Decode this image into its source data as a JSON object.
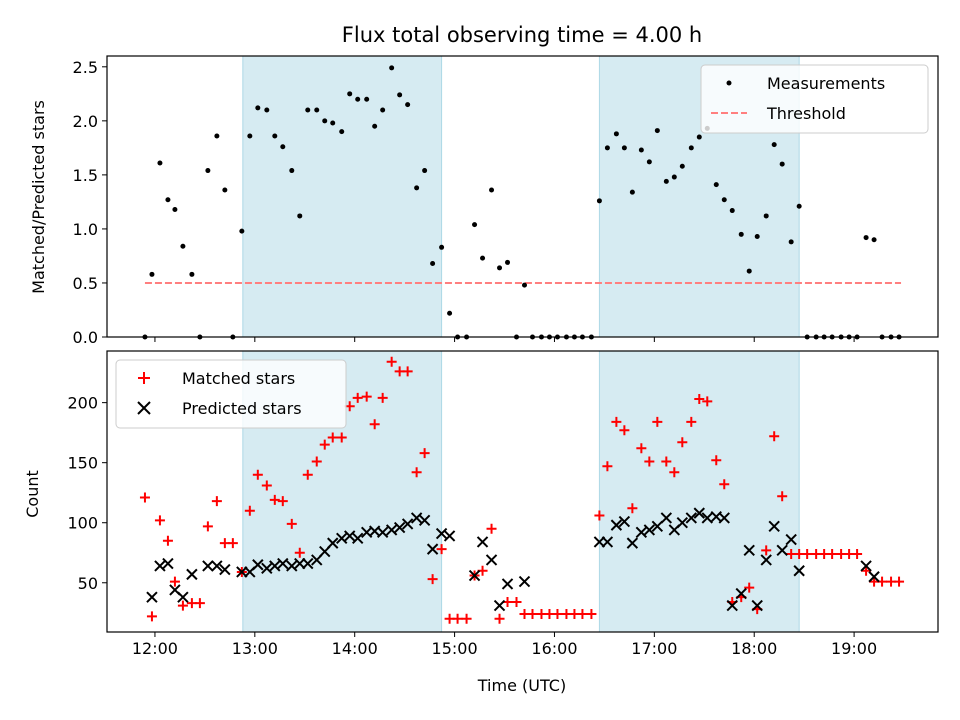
{
  "chart_data": [
    {
      "type": "scatter",
      "title": "Flux total observing time = 4.00 h",
      "xlabel": "",
      "ylabel": "Matched/Predicted stars",
      "xlim": [
        11.52,
        19.84
      ],
      "ylim": [
        0,
        2.6
      ],
      "yticks": [
        0.0,
        0.5,
        1.0,
        1.5,
        2.0,
        2.5
      ],
      "ytick_labels": [
        "0.0",
        "0.5",
        "1.0",
        "1.5",
        "2.0",
        "2.5"
      ],
      "xticks": [
        12,
        13,
        14,
        15,
        16,
        17,
        18,
        19
      ],
      "shaded_intervals": [
        [
          12.88,
          14.87
        ],
        [
          16.45,
          18.45
        ]
      ],
      "shade_color": "#add8e6",
      "legend": {
        "location": "upper right",
        "entries": [
          {
            "label": "Measurements",
            "marker": "dot",
            "color": "#000000"
          },
          {
            "label": "Threshold",
            "marker": "dashed-line",
            "color": "#ff7f7f"
          }
        ]
      },
      "threshold": {
        "name": "Threshold",
        "y": 0.5,
        "x_range": [
          11.9,
          19.47
        ],
        "color": "#ff7f7f"
      },
      "series": [
        {
          "name": "Measurements",
          "color": "#000000",
          "x": [
            11.9,
            11.97,
            12.05,
            12.13,
            12.2,
            12.28,
            12.37,
            12.45,
            12.53,
            12.62,
            12.7,
            12.78,
            12.87,
            12.95,
            13.03,
            13.12,
            13.2,
            13.28,
            13.37,
            13.45,
            13.53,
            13.62,
            13.7,
            13.78,
            13.87,
            13.95,
            14.03,
            14.12,
            14.2,
            14.28,
            14.37,
            14.45,
            14.53,
            14.62,
            14.7,
            14.78,
            14.87,
            14.95,
            15.03,
            15.12,
            15.2,
            15.28,
            15.37,
            15.45,
            15.53,
            15.62,
            15.7,
            15.78,
            15.87,
            15.95,
            16.03,
            16.12,
            16.2,
            16.28,
            16.37,
            16.45,
            16.53,
            16.62,
            16.7,
            16.78,
            16.87,
            16.95,
            17.03,
            17.12,
            17.2,
            17.28,
            17.37,
            17.45,
            17.53,
            17.62,
            17.7,
            17.78,
            17.87,
            17.95,
            18.03,
            18.12,
            18.2,
            18.28,
            18.37,
            18.45,
            18.53,
            18.62,
            18.7,
            18.78,
            18.87,
            18.95,
            19.03,
            19.12,
            19.2,
            19.28,
            19.37,
            19.45
          ],
          "y": [
            0.0,
            0.58,
            1.61,
            1.27,
            1.18,
            0.84,
            0.58,
            0.0,
            1.54,
            1.86,
            1.36,
            0.0,
            0.98,
            1.86,
            2.12,
            2.1,
            1.86,
            1.76,
            1.54,
            1.12,
            2.1,
            2.1,
            2.0,
            1.98,
            1.9,
            2.25,
            2.2,
            2.2,
            1.95,
            2.1,
            2.49,
            2.24,
            2.15,
            1.38,
            1.54,
            0.68,
            0.83,
            0.22,
            0.0,
            0.0,
            1.04,
            0.73,
            1.36,
            0.64,
            0.69,
            0.0,
            0.48,
            0.0,
            0.0,
            0.0,
            0.0,
            0.0,
            0.0,
            0.0,
            0.0,
            1.26,
            1.75,
            1.88,
            1.75,
            1.34,
            1.73,
            1.62,
            1.91,
            1.44,
            1.48,
            1.58,
            1.75,
            1.85,
            1.93,
            1.41,
            1.27,
            1.17,
            0.95,
            0.61,
            0.93,
            1.12,
            1.78,
            1.6,
            0.88,
            1.21,
            0.0,
            0.0,
            0.0,
            0.0,
            0.0,
            0.0,
            0.0,
            0.92,
            0.9,
            0.0,
            0.0,
            0.0
          ]
        }
      ]
    },
    {
      "type": "scatter",
      "title": "",
      "xlabel": "Time (UTC)",
      "ylabel": "Count",
      "xlim": [
        11.52,
        19.84
      ],
      "ylim": [
        9,
        243
      ],
      "yticks": [
        50,
        100,
        150,
        200
      ],
      "ytick_labels": [
        "50",
        "100",
        "150",
        "200"
      ],
      "xticks": [
        12,
        13,
        14,
        15,
        16,
        17,
        18,
        19
      ],
      "xtick_labels": [
        "12:00",
        "13:00",
        "14:00",
        "15:00",
        "16:00",
        "17:00",
        "18:00",
        "19:00"
      ],
      "shaded_intervals": [
        [
          12.88,
          14.87
        ],
        [
          16.45,
          18.45
        ]
      ],
      "shade_color": "#add8e6",
      "legend": {
        "location": "upper left",
        "entries": [
          {
            "label": "Matched stars",
            "marker": "plus",
            "color": "#ff0000"
          },
          {
            "label": "Predicted stars",
            "marker": "x",
            "color": "#000000"
          }
        ]
      },
      "series": [
        {
          "name": "Matched stars",
          "marker": "plus",
          "color": "#ff0000",
          "x": [
            11.9,
            11.97,
            12.05,
            12.13,
            12.2,
            12.28,
            12.37,
            12.45,
            12.53,
            12.62,
            12.7,
            12.78,
            12.87,
            12.95,
            13.03,
            13.12,
            13.2,
            13.28,
            13.37,
            13.45,
            13.53,
            13.62,
            13.7,
            13.78,
            13.87,
            13.95,
            14.03,
            14.12,
            14.2,
            14.28,
            14.37,
            14.45,
            14.53,
            14.62,
            14.7,
            14.78,
            14.87,
            14.95,
            15.03,
            15.12,
            15.2,
            15.28,
            15.37,
            15.45,
            15.53,
            15.62,
            15.7,
            15.78,
            15.87,
            15.95,
            16.03,
            16.12,
            16.2,
            16.28,
            16.37,
            16.45,
            16.53,
            16.62,
            16.7,
            16.78,
            16.87,
            16.95,
            17.03,
            17.12,
            17.2,
            17.28,
            17.37,
            17.45,
            17.53,
            17.62,
            17.7,
            17.78,
            17.87,
            17.95,
            18.03,
            18.12,
            18.2,
            18.28,
            18.37,
            18.45,
            18.53,
            18.62,
            18.7,
            18.78,
            18.87,
            18.95,
            19.03,
            19.12,
            19.2,
            19.28,
            19.37,
            19.45
          ],
          "y": [
            121,
            22,
            102,
            85,
            51,
            31,
            33,
            33,
            97,
            118,
            83,
            83,
            59,
            110,
            140,
            131,
            119,
            118,
            99,
            75,
            140,
            151,
            165,
            171,
            171,
            197,
            204,
            205,
            182,
            204,
            234,
            226,
            226,
            142,
            158,
            53,
            78,
            20,
            20,
            20,
            56,
            60,
            95,
            20,
            34,
            34,
            24,
            24,
            24,
            24,
            24,
            24,
            24,
            24,
            24,
            106,
            147,
            184,
            177,
            112,
            162,
            151,
            184,
            151,
            142,
            167,
            184,
            203,
            201,
            152,
            132,
            34,
            38,
            46,
            28,
            77,
            172,
            122,
            74,
            74,
            74,
            74,
            74,
            74,
            74,
            74,
            74,
            60,
            51,
            51,
            51,
            51
          ]
        },
        {
          "name": "Predicted stars",
          "marker": "x",
          "color": "#000000",
          "x": [
            11.97,
            12.05,
            12.13,
            12.2,
            12.28,
            12.37,
            12.53,
            12.62,
            12.7,
            12.87,
            12.95,
            13.03,
            13.12,
            13.2,
            13.28,
            13.37,
            13.45,
            13.53,
            13.62,
            13.7,
            13.78,
            13.87,
            13.95,
            14.03,
            14.12,
            14.2,
            14.28,
            14.37,
            14.45,
            14.53,
            14.62,
            14.7,
            14.78,
            14.87,
            14.95,
            15.2,
            15.28,
            15.37,
            15.45,
            15.53,
            15.7,
            16.45,
            16.53,
            16.62,
            16.7,
            16.78,
            16.87,
            16.95,
            17.03,
            17.12,
            17.2,
            17.28,
            17.37,
            17.45,
            17.53,
            17.62,
            17.7,
            17.78,
            17.87,
            17.95,
            18.03,
            18.12,
            18.2,
            18.28,
            18.37,
            18.45,
            19.12,
            19.2
          ],
          "y": [
            38,
            64,
            66,
            44,
            38,
            57,
            64,
            64,
            61,
            59,
            59,
            65,
            62,
            64,
            66,
            64,
            66,
            66,
            69,
            76,
            83,
            87,
            89,
            87,
            92,
            93,
            92,
            94,
            96,
            99,
            104,
            102,
            78,
            91,
            89,
            56,
            84,
            69,
            31,
            49,
            51,
            84,
            84,
            98,
            101,
            83,
            92,
            94,
            97,
            104,
            94,
            100,
            104,
            108,
            104,
            105,
            104,
            31,
            41,
            77,
            31,
            69,
            97,
            77,
            86,
            60,
            64,
            55
          ]
        }
      ]
    }
  ]
}
